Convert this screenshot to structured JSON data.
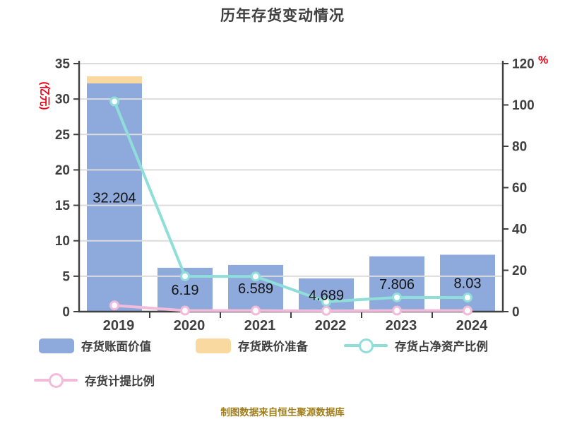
{
  "title": "历年存货变动情况",
  "footer": "制图数据来自恒生聚源数据库",
  "colors": {
    "bar_book_value": "#8EA9DC",
    "bar_provision": "#FAD9A1",
    "line_net_asset_ratio": "#8FDEDA",
    "line_provision_ratio": "#F0BCD9",
    "axis": "#404040",
    "grid": "#DCDCDC",
    "tick_text": "#404040",
    "bar_label_text": "#141414",
    "unit_label": "#E60012",
    "footer_text": "#A07E1C"
  },
  "left_axis": {
    "label": "(亿元)",
    "min": 0,
    "max": 35,
    "step": 5,
    "ticks": [
      "35",
      "30",
      "25",
      "20",
      "15",
      "10",
      "5",
      "0"
    ]
  },
  "right_axis": {
    "label": "%",
    "min": 0,
    "max": 120,
    "step": 20,
    "ticks": [
      "120",
      "100",
      "80",
      "60",
      "40",
      "20",
      "0"
    ]
  },
  "chart_data": {
    "type": "bar",
    "title": "历年存货变动情况",
    "categories": [
      "2019",
      "2020",
      "2021",
      "2022",
      "2023",
      "2024"
    ],
    "grid": true,
    "legend_position": "bottom",
    "left_axis_range": [
      0,
      35
    ],
    "right_axis_range": [
      0,
      120
    ],
    "series": [
      {
        "name": "存货账面价值",
        "type": "bar",
        "stack": true,
        "axis": "left",
        "color": "#8EA9DC",
        "values": [
          32.204,
          6.19,
          6.589,
          4.689,
          7.806,
          8.03
        ],
        "data_labels": [
          "32.204",
          "6.19",
          "6.589",
          "4.689",
          "7.806",
          "8.03"
        ]
      },
      {
        "name": "存货跌价准备",
        "type": "bar",
        "stack": true,
        "axis": "left",
        "color": "#FAD9A1",
        "values": [
          1.0,
          0,
          0,
          0,
          0,
          0
        ]
      },
      {
        "name": "存货占净资产比例",
        "type": "line",
        "axis": "right",
        "color": "#8FDEDA",
        "values": [
          101.7,
          17.1,
          17.0,
          4.8,
          6.9,
          6.8
        ]
      },
      {
        "name": "存货计提比例",
        "type": "line",
        "axis": "right",
        "color": "#F0BCD9",
        "values": [
          3.0,
          0.5,
          0.5,
          0.4,
          0.5,
          0.5
        ]
      }
    ]
  },
  "legend": {
    "items": [
      {
        "label": "存货账面价值",
        "marker": "bar",
        "color": "#8EA9DC"
      },
      {
        "label": "存货跌价准备",
        "marker": "bar",
        "color": "#FAD9A1"
      },
      {
        "label": "存货占净资产比例",
        "marker": "line",
        "color": "#8FDEDA"
      },
      {
        "label": "存货计提比例",
        "marker": "line",
        "color": "#F0BCD9"
      }
    ]
  }
}
